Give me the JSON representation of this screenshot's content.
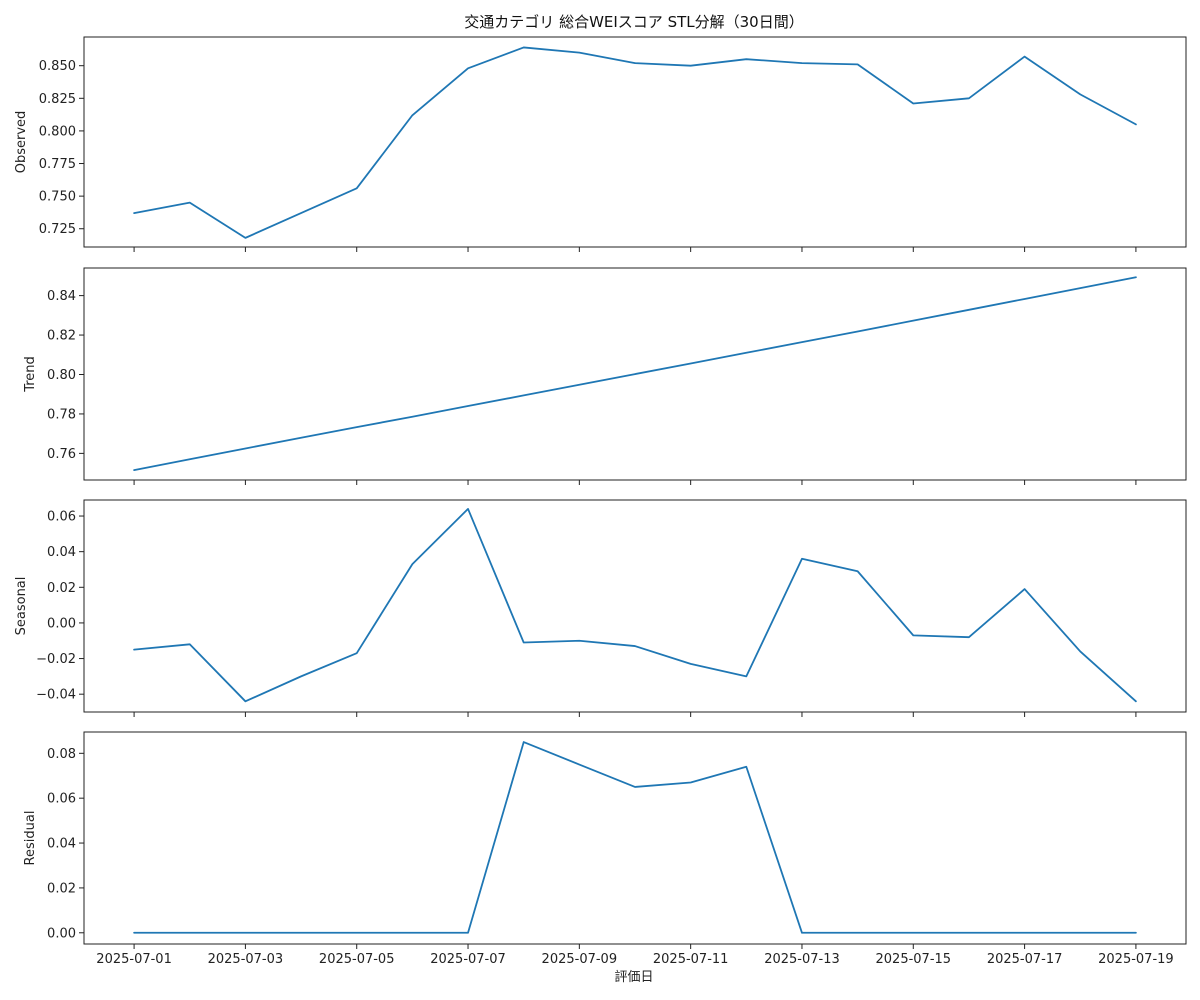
{
  "title": "交通カテゴリ 総合WEIスコア STL分解（30日間）",
  "xlabel": "評価日",
  "line_color": "#1f77b4",
  "chart_data": [
    {
      "type": "line",
      "ylabel": "Observed",
      "ylim": [
        0.711,
        0.872
      ],
      "yticks": [
        0.725,
        0.75,
        0.775,
        0.8,
        0.825,
        0.85
      ],
      "ytick_labels": [
        "0.725",
        "0.750",
        "0.775",
        "0.800",
        "0.825",
        "0.850"
      ],
      "x": [
        "2025-07-01",
        "2025-07-02",
        "2025-07-03",
        "2025-07-04",
        "2025-07-05",
        "2025-07-06",
        "2025-07-07",
        "2025-07-08",
        "2025-07-09",
        "2025-07-10",
        "2025-07-11",
        "2025-07-12",
        "2025-07-13",
        "2025-07-14",
        "2025-07-15",
        "2025-07-16",
        "2025-07-17",
        "2025-07-18",
        "2025-07-19"
      ],
      "values": [
        0.737,
        0.745,
        0.718,
        0.737,
        0.756,
        0.812,
        0.848,
        0.864,
        0.86,
        0.852,
        0.85,
        0.855,
        0.852,
        0.851,
        0.821,
        0.825,
        0.857,
        0.828,
        0.805
      ]
    },
    {
      "type": "line",
      "ylabel": "Trend",
      "ylim": [
        0.7465,
        0.854
      ],
      "yticks": [
        0.76,
        0.78,
        0.8,
        0.82,
        0.84
      ],
      "ytick_labels": [
        "0.76",
        "0.78",
        "0.80",
        "0.82",
        "0.84"
      ],
      "x": [
        "2025-07-01",
        "2025-07-02",
        "2025-07-03",
        "2025-07-04",
        "2025-07-05",
        "2025-07-06",
        "2025-07-07",
        "2025-07-08",
        "2025-07-09",
        "2025-07-10",
        "2025-07-11",
        "2025-07-12",
        "2025-07-13",
        "2025-07-14",
        "2025-07-15",
        "2025-07-16",
        "2025-07-17",
        "2025-07-18",
        "2025-07-19"
      ],
      "values": [
        0.7515,
        0.757,
        0.7625,
        0.7679,
        0.7733,
        0.7786,
        0.784,
        0.7894,
        0.7948,
        0.8002,
        0.8056,
        0.811,
        0.8164,
        0.8218,
        0.8273,
        0.8328,
        0.8383,
        0.8438,
        0.8493
      ]
    },
    {
      "type": "line",
      "ylabel": "Seasonal",
      "ylim": [
        -0.05,
        0.069
      ],
      "yticks": [
        -0.04,
        -0.02,
        0.0,
        0.02,
        0.04,
        0.06
      ],
      "ytick_labels": [
        "−0.04",
        "−0.02",
        "0.00",
        "0.02",
        "0.04",
        "0.06"
      ],
      "x": [
        "2025-07-01",
        "2025-07-02",
        "2025-07-03",
        "2025-07-04",
        "2025-07-05",
        "2025-07-06",
        "2025-07-07",
        "2025-07-08",
        "2025-07-09",
        "2025-07-10",
        "2025-07-11",
        "2025-07-12",
        "2025-07-13",
        "2025-07-14",
        "2025-07-15",
        "2025-07-16",
        "2025-07-17",
        "2025-07-18",
        "2025-07-19"
      ],
      "values": [
        -0.015,
        -0.012,
        -0.044,
        -0.03,
        -0.017,
        0.033,
        0.064,
        -0.011,
        -0.01,
        -0.013,
        -0.023,
        -0.03,
        0.036,
        0.029,
        -0.007,
        -0.008,
        0.019,
        -0.016,
        -0.044
      ]
    },
    {
      "type": "line",
      "ylabel": "Residual",
      "ylim": [
        -0.005,
        0.0895
      ],
      "yticks": [
        0.0,
        0.02,
        0.04,
        0.06,
        0.08
      ],
      "ytick_labels": [
        "0.00",
        "0.02",
        "0.04",
        "0.06",
        "0.08"
      ],
      "x": [
        "2025-07-01",
        "2025-07-02",
        "2025-07-03",
        "2025-07-04",
        "2025-07-05",
        "2025-07-06",
        "2025-07-07",
        "2025-07-08",
        "2025-07-09",
        "2025-07-10",
        "2025-07-11",
        "2025-07-12",
        "2025-07-13",
        "2025-07-14",
        "2025-07-15",
        "2025-07-16",
        "2025-07-17",
        "2025-07-18",
        "2025-07-19"
      ],
      "values": [
        0.0,
        0.0,
        0.0,
        0.0,
        0.0,
        0.0,
        0.0,
        0.085,
        0.075,
        0.065,
        0.067,
        0.074,
        0.0,
        0.0,
        0.0,
        0.0,
        0.0,
        0.0,
        0.0
      ]
    }
  ],
  "xtick_labels": [
    "2025-07-01",
    "2025-07-03",
    "2025-07-05",
    "2025-07-07",
    "2025-07-09",
    "2025-07-11",
    "2025-07-13",
    "2025-07-15",
    "2025-07-17",
    "2025-07-19"
  ],
  "grid": false
}
